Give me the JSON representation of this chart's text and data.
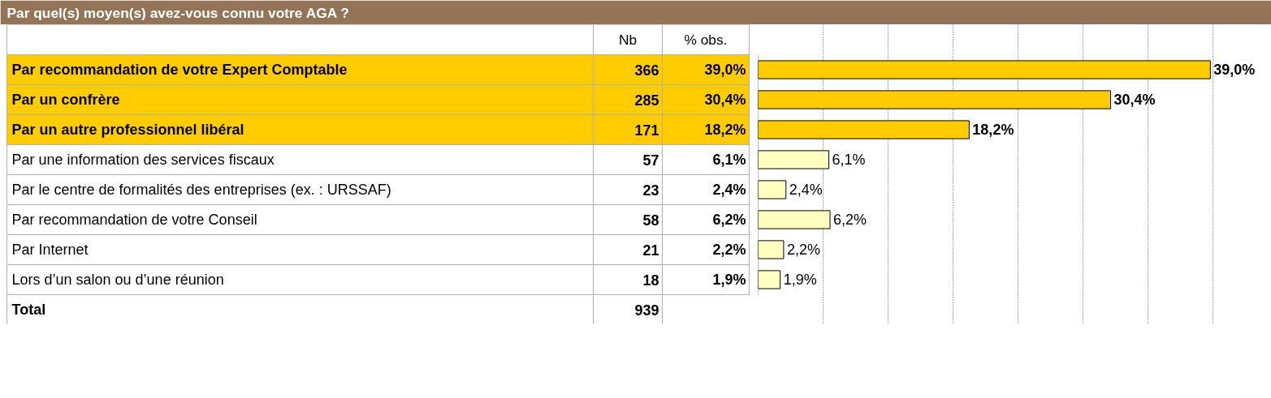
{
  "chart_data": {
    "type": "bar",
    "orientation": "horizontal",
    "title": "Par quel(s) moyen(s) avez-vous connu votre AGA ?",
    "categories": [
      "Par recommandation de votre Expert Comptable",
      "Par un confrère",
      "Par un autre professionnel libéral",
      "Par une information des services fiscaux",
      "Par le centre de formalités des entreprises (ex. : URSSAF)",
      "Par recommandation de votre Conseil",
      "Par Internet",
      "Lors d’un salon ou d’une réunion"
    ],
    "values": [
      39.0,
      30.4,
      18.2,
      6.1,
      2.4,
      6.2,
      2.2,
      1.9
    ],
    "value_labels": [
      "39,0%",
      "30,4%",
      "18,2%",
      "6,1%",
      "2,4%",
      "6,2%",
      "2,2%",
      "1,9%"
    ],
    "colors": [
      "#ffcc00",
      "#ffcc00",
      "#ffcc00",
      "#ffffc0",
      "#ffffc0",
      "#ffffc0",
      "#ffffc0",
      "#ffffc0"
    ],
    "xticks": [
      {
        "value": 5.6,
        "label": null
      },
      {
        "value": 11.2,
        "label": null
      },
      {
        "value": 16.8,
        "label": null
      },
      {
        "value": 22.4,
        "label": null
      },
      {
        "value": 28.0,
        "label": null
      },
      {
        "value": 33.6,
        "label": null
      },
      {
        "value": 39.2,
        "label": null
      },
      {
        "value": 44.8,
        "label": null
      }
    ],
    "grid": "x",
    "tick_labels": false,
    "annotations": [
      "Nb",
      "% obs.",
      "Total",
      "939",
      "366",
      "285",
      "171",
      "57",
      "23",
      "58",
      "21",
      "18"
    ]
  }
}
